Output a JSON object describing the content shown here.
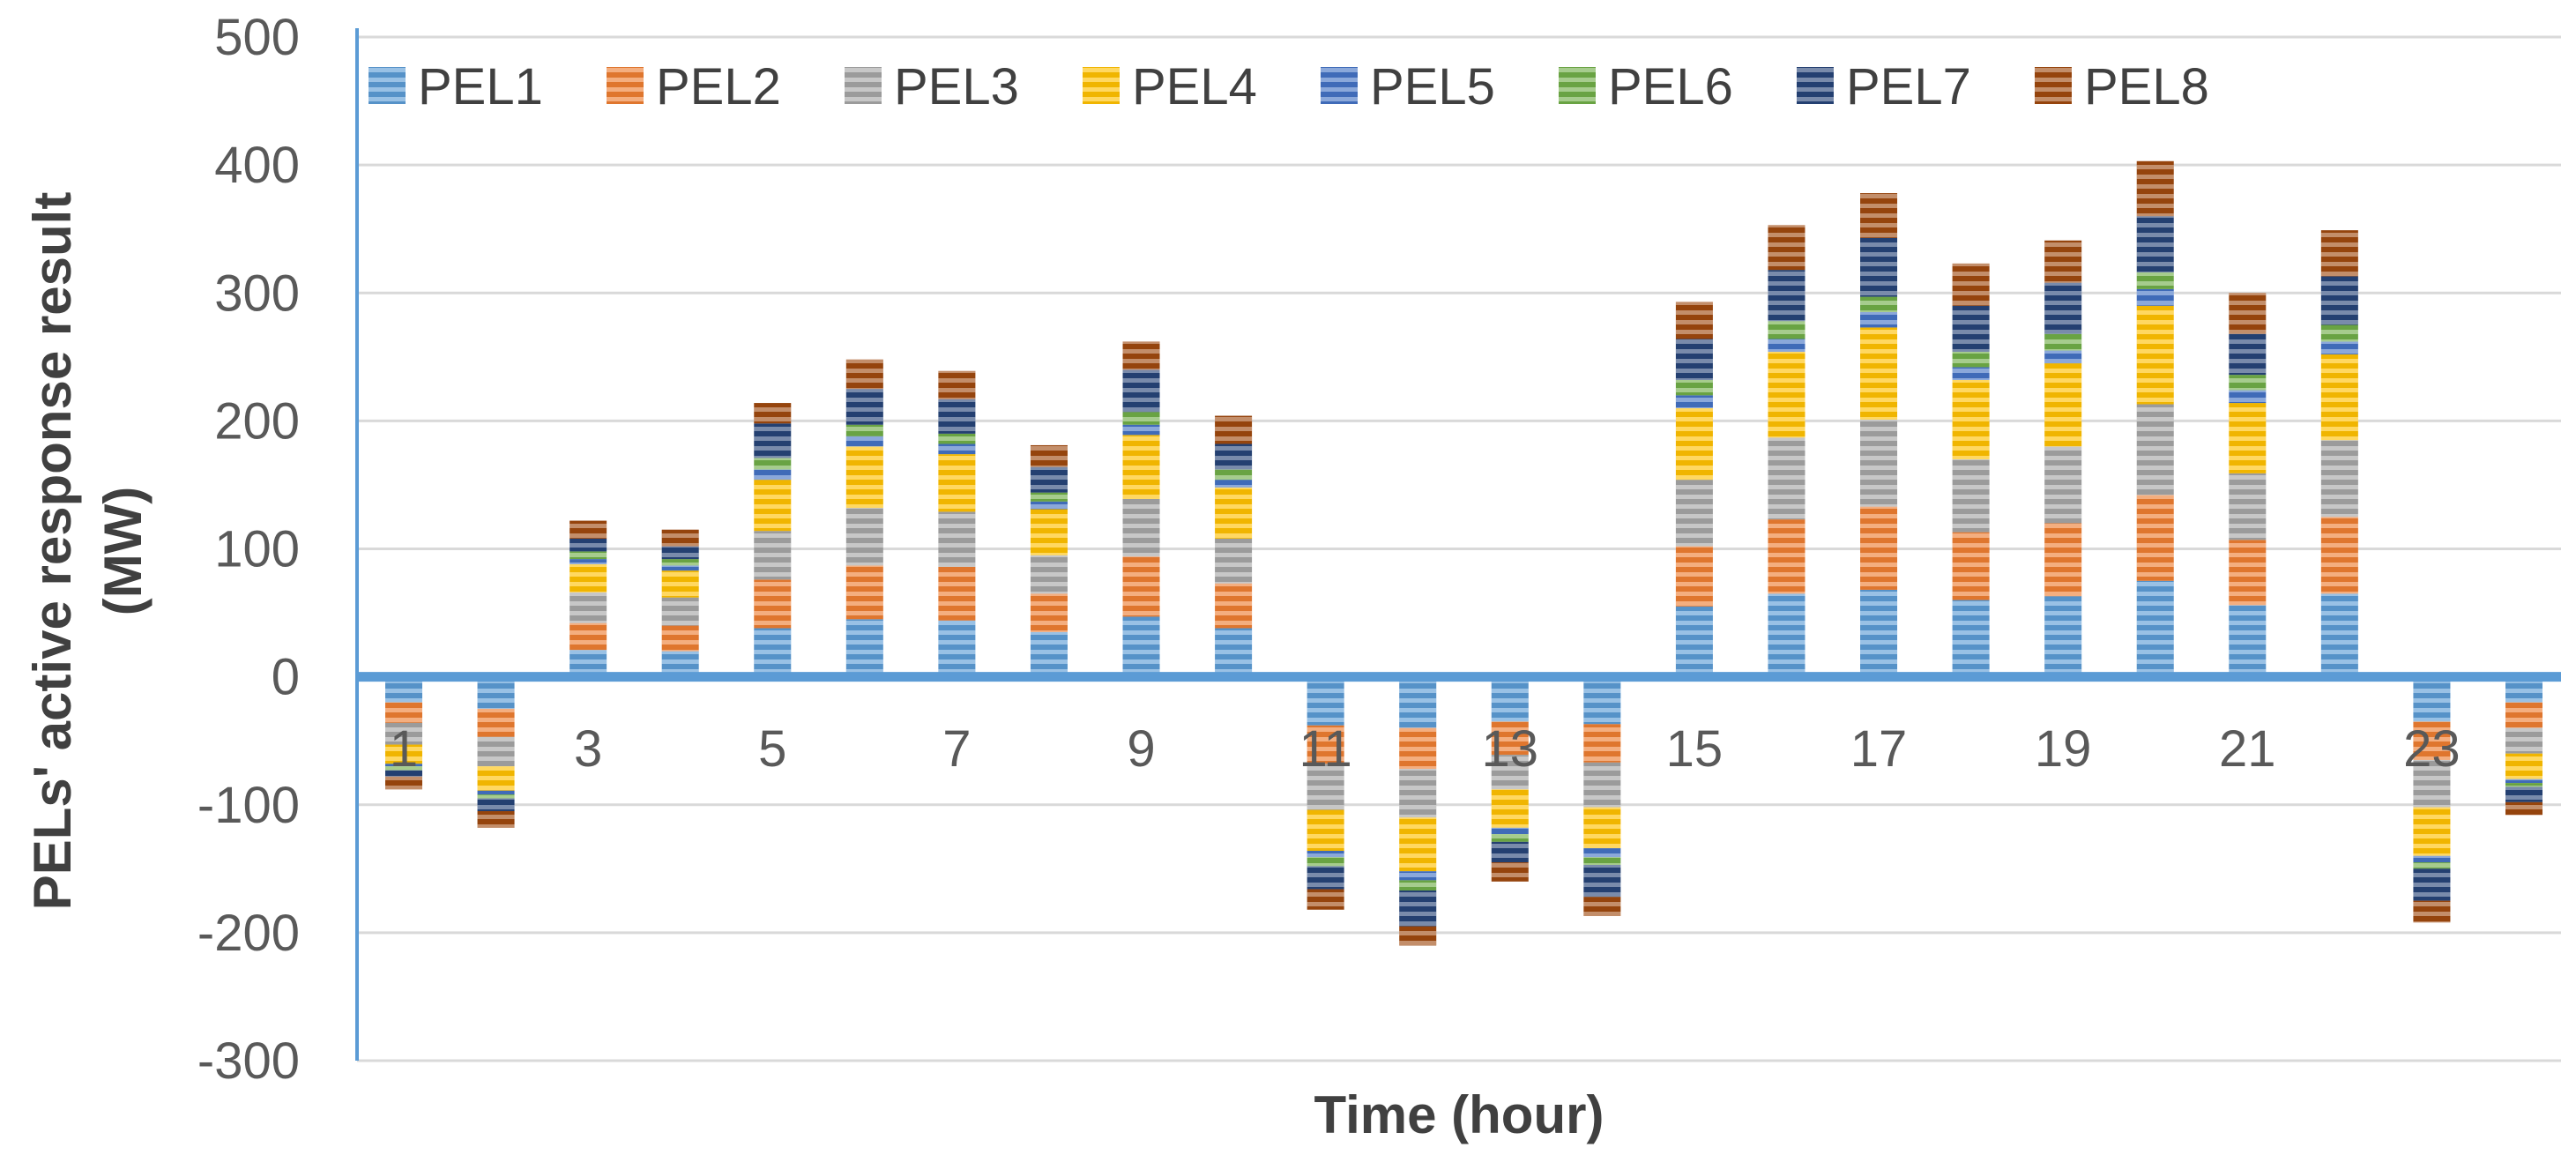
{
  "chart_data": {
    "type": "bar",
    "stacked": true,
    "title": "",
    "xlabel": "Time (hour)",
    "ylabel_line1": "PELs' active response result",
    "ylabel_line2": "(MW)",
    "ylim": [
      -300,
      500
    ],
    "yticks": [
      500,
      400,
      300,
      200,
      100,
      0,
      -100,
      -200,
      -300
    ],
    "ytick_labels": [
      "500",
      "400",
      "300",
      "200",
      "100",
      "0",
      "-100",
      "-200",
      "-300"
    ],
    "x_tick_labels": [
      {
        "hour": 1,
        "label": "1"
      },
      {
        "hour": 3,
        "label": "3"
      },
      {
        "hour": 5,
        "label": "5"
      },
      {
        "hour": 7,
        "label": "7"
      },
      {
        "hour": 9,
        "label": "9"
      },
      {
        "hour": 11,
        "label": "11"
      },
      {
        "hour": 13,
        "label": "13"
      },
      {
        "hour": 15,
        "label": "15"
      },
      {
        "hour": 17,
        "label": "17"
      },
      {
        "hour": 19,
        "label": "19"
      },
      {
        "hour": 21,
        "label": "21"
      },
      {
        "hour": 23,
        "label": "23"
      }
    ],
    "grid": true,
    "legend_position": "top",
    "categories": [
      1,
      2,
      3,
      4,
      5,
      6,
      7,
      8,
      9,
      10,
      11,
      12,
      13,
      14,
      15,
      16,
      17,
      18,
      19,
      20,
      21,
      22,
      23,
      24
    ],
    "series": [
      {
        "name": "PEL1",
        "color": "#5B9BD5",
        "values": [
          -20,
          -25,
          21,
          20,
          38,
          45,
          44,
          35,
          47,
          38,
          -38,
          -40,
          -35,
          -37,
          55,
          65,
          68,
          60,
          63,
          75,
          56,
          65,
          -35,
          -20
        ]
      },
      {
        "name": "PEL2",
        "color": "#ED7D31",
        "values": [
          -16,
          -22,
          21,
          20,
          38,
          42,
          42,
          30,
          47,
          35,
          -30,
          -32,
          -26,
          -30,
          47,
          58,
          65,
          53,
          57,
          67,
          51,
          60,
          -30,
          -20
        ]
      },
      {
        "name": "PEL3",
        "color": "#A5A5A5",
        "values": [
          -17,
          -23,
          24,
          22,
          38,
          45,
          43,
          30,
          45,
          35,
          -36,
          -38,
          -27,
          -35,
          52,
          64,
          68,
          57,
          60,
          71,
          52,
          60,
          -37,
          -20
        ]
      },
      {
        "name": "PEL4",
        "color": "#FFC000",
        "values": [
          -15,
          -19,
          22,
          21,
          40,
          48,
          45,
          36,
          50,
          40,
          -32,
          -42,
          -30,
          -32,
          56,
          67,
          72,
          62,
          65,
          77,
          55,
          67,
          -38,
          -20
        ]
      },
      {
        "name": "PEL5",
        "color": "#4472C4",
        "values": [
          -2,
          -3,
          4,
          4,
          8,
          8,
          8,
          6,
          8,
          6,
          -5,
          -7,
          -5,
          -7,
          10,
          10,
          12,
          10,
          10,
          13,
          10,
          10,
          -5,
          -3
        ]
      },
      {
        "name": "PEL6",
        "color": "#70AD47",
        "values": [
          -3,
          -3,
          6,
          5,
          9,
          9,
          8,
          7,
          10,
          8,
          -7,
          -8,
          -6,
          -6,
          12,
          14,
          12,
          12,
          13,
          13,
          12,
          13,
          -5,
          -3
        ]
      },
      {
        "name": "PEL7",
        "color": "#264478",
        "values": [
          -5,
          -10,
          10,
          10,
          27,
          28,
          27,
          20,
          33,
          20,
          -18,
          -28,
          -16,
          -25,
          32,
          40,
          46,
          36,
          40,
          44,
          32,
          38,
          -25,
          -12
        ]
      },
      {
        "name": "PEL8",
        "color": "#9E480E",
        "values": [
          -10,
          -13,
          14,
          13,
          16,
          23,
          22,
          17,
          22,
          22,
          -16,
          -15,
          -15,
          -15,
          29,
          35,
          35,
          33,
          33,
          43,
          32,
          36,
          -17,
          -10
        ]
      }
    ]
  }
}
